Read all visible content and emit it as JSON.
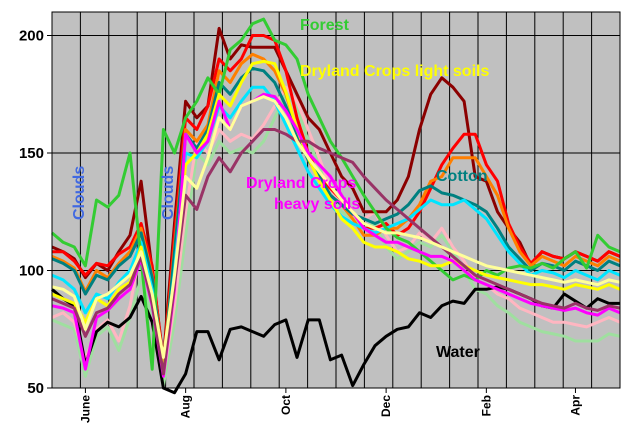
{
  "chart_data": {
    "type": "line",
    "title": "",
    "xlabel": "",
    "ylabel": "",
    "ylim": [
      50,
      210
    ],
    "yticks": [
      50,
      100,
      150,
      200
    ],
    "n_points": 52,
    "grid": true,
    "x_ticks": [
      {
        "label": "June",
        "index": 3
      },
      {
        "label": "Aug",
        "index": 12
      },
      {
        "label": "Oct",
        "index": 21
      },
      {
        "label": "Dec",
        "index": 30
      },
      {
        "label": "Feb",
        "index": 39
      },
      {
        "label": "Apr",
        "index": 47
      }
    ],
    "annotations": [
      {
        "text": "Forest",
        "color": "#33cc33"
      },
      {
        "text": "Dryland Crops light soils",
        "color": "#ffff00"
      },
      {
        "text": "Cotton",
        "color": "#008080"
      },
      {
        "text": "Dryland Crops",
        "color": "#ff00ff"
      },
      {
        "text": "heavy soils",
        "color": "#ff00ff"
      },
      {
        "text": "Water",
        "color": "#000000"
      },
      {
        "text": "Clouds",
        "color": "#4169e1"
      },
      {
        "text": "Clouds",
        "color": "#4169e1"
      }
    ],
    "series": [
      {
        "color": "#9fdf9f",
        "values": [
          79,
          77,
          75,
          55,
          72,
          76,
          66,
          80,
          97,
          80,
          51,
          78,
          115,
          150,
          145,
          155,
          150,
          152,
          150,
          155,
          165,
          175,
          170,
          155,
          145,
          130,
          125,
          122,
          118,
          120,
          110,
          105,
          108,
          112,
          110,
          115,
          108,
          100,
          92,
          90,
          85,
          82,
          78,
          76,
          74,
          73,
          72,
          70,
          70,
          70,
          73,
          72
        ]
      },
      {
        "color": "#ffb6c1",
        "values": [
          80,
          82,
          78,
          62,
          75,
          79,
          70,
          85,
          110,
          88,
          55,
          85,
          125,
          155,
          150,
          160,
          155,
          158,
          156,
          162,
          170,
          178,
          172,
          160,
          148,
          135,
          128,
          124,
          122,
          125,
          115,
          108,
          110,
          116,
          112,
          118,
          110,
          104,
          96,
          94,
          90,
          88,
          84,
          82,
          80,
          78,
          78,
          77,
          76,
          78,
          80,
          78
        ]
      },
      {
        "color": "#000000",
        "values": [
          92,
          88,
          85,
          60,
          74,
          78,
          76,
          80,
          89,
          78,
          50,
          48,
          56,
          74,
          74,
          62,
          75,
          76,
          74,
          72,
          77,
          79,
          63,
          79,
          79,
          62,
          64,
          51,
          60,
          68,
          72,
          75,
          76,
          82,
          80,
          85,
          87,
          86,
          92,
          92,
          93,
          92,
          90,
          88,
          85,
          84,
          90,
          87,
          84,
          88,
          86,
          86
        ]
      },
      {
        "color": "#8b0000",
        "values": [
          110,
          108,
          105,
          97,
          103,
          100,
          108,
          115,
          138,
          100,
          62,
          120,
          172,
          165,
          170,
          203,
          190,
          196,
          195,
          195,
          195,
          185,
          175,
          165,
          160,
          150,
          140,
          135,
          125,
          125,
          125,
          130,
          140,
          160,
          175,
          182,
          178,
          172,
          140,
          138,
          125,
          118,
          112,
          102,
          108,
          106,
          105,
          108,
          106,
          104,
          108,
          106
        ]
      },
      {
        "color": "#ff0000",
        "values": [
          108,
          108,
          104,
          98,
          103,
          102,
          107,
          110,
          120,
          102,
          60,
          115,
          165,
          160,
          170,
          190,
          185,
          190,
          200,
          200,
          198,
          185,
          165,
          150,
          140,
          135,
          130,
          125,
          118,
          118,
          120,
          115,
          118,
          125,
          135,
          145,
          152,
          158,
          158,
          145,
          138,
          120,
          110,
          103,
          108,
          106,
          105,
          108,
          106,
          104,
          108,
          106
        ]
      },
      {
        "color": "#ff7f00",
        "values": [
          106,
          104,
          101,
          91,
          100,
          97,
          103,
          108,
          118,
          98,
          59,
          110,
          160,
          155,
          162,
          185,
          180,
          188,
          192,
          190,
          185,
          175,
          160,
          148,
          140,
          132,
          128,
          122,
          115,
          115,
          118,
          118,
          122,
          128,
          138,
          140,
          148,
          148,
          148,
          140,
          132,
          118,
          108,
          102,
          106,
          104,
          102,
          106,
          104,
          102,
          106,
          104
        ]
      },
      {
        "color": "#008080",
        "values": [
          105,
          103,
          100,
          90,
          98,
          96,
          102,
          106,
          116,
          97,
          58,
          108,
          158,
          152,
          160,
          180,
          175,
          182,
          186,
          185,
          180,
          170,
          158,
          147,
          140,
          132,
          128,
          124,
          122,
          120,
          122,
          124,
          128,
          134,
          136,
          133,
          132,
          130,
          128,
          125,
          118,
          110,
          105,
          100,
          103,
          102,
          100,
          104,
          102,
          100,
          104,
          102
        ]
      },
      {
        "color": "#00e5ff",
        "values": [
          98,
          96,
          92,
          82,
          90,
          88,
          95,
          100,
          112,
          92,
          57,
          100,
          150,
          148,
          155,
          170,
          165,
          172,
          178,
          178,
          172,
          162,
          152,
          142,
          135,
          128,
          123,
          120,
          118,
          116,
          118,
          120,
          122,
          126,
          130,
          128,
          128,
          130,
          126,
          122,
          115,
          108,
          103,
          98,
          100,
          99,
          97,
          100,
          98,
          96,
          100,
          98
        ]
      },
      {
        "color": "#33cc33",
        "values": [
          116,
          112,
          110,
          102,
          130,
          127,
          132,
          150,
          105,
          58,
          160,
          150,
          165,
          172,
          182,
          175,
          194,
          198,
          205,
          207,
          198,
          196,
          190,
          175,
          165,
          155,
          148,
          140,
          132,
          125,
          118,
          114,
          112,
          108,
          104,
          100,
          96,
          98,
          96,
          100,
          98,
          101,
          102,
          101,
          103,
          101,
          105,
          108,
          101,
          115,
          110,
          108
        ]
      },
      {
        "color": "#ffff00",
        "values": [
          90,
          88,
          86,
          78,
          88,
          85,
          92,
          95,
          110,
          88,
          58,
          96,
          145,
          150,
          158,
          175,
          170,
          180,
          188,
          189,
          188,
          176,
          160,
          148,
          138,
          130,
          122,
          118,
          112,
          110,
          110,
          108,
          105,
          104,
          102,
          102,
          104,
          102,
          100,
          98,
          97,
          96,
          95,
          94,
          94,
          93,
          92,
          94,
          93,
          92,
          94,
          92
        ]
      },
      {
        "color": "#ff00ff",
        "values": [
          85,
          84,
          82,
          58,
          80,
          83,
          88,
          92,
          105,
          85,
          55,
          92,
          158,
          150,
          155,
          172,
          160,
          170,
          172,
          175,
          174,
          168,
          160,
          150,
          145,
          140,
          132,
          125,
          118,
          115,
          112,
          112,
          110,
          108,
          106,
          106,
          104,
          100,
          96,
          94,
          92,
          90,
          88,
          86,
          85,
          84,
          83,
          84,
          82,
          81,
          84,
          82
        ]
      },
      {
        "color": "#993366",
        "values": [
          88,
          86,
          84,
          72,
          82,
          84,
          90,
          94,
          106,
          86,
          56,
          94,
          132,
          126,
          140,
          148,
          142,
          150,
          155,
          160,
          160,
          158,
          155,
          155,
          152,
          150,
          148,
          146,
          140,
          135,
          130,
          126,
          122,
          118,
          114,
          110,
          106,
          102,
          98,
          96,
          94,
          92,
          90,
          88,
          86,
          85,
          84,
          86,
          84,
          83,
          85,
          84
        ]
      },
      {
        "color": "#ffff99",
        "values": [
          93,
          92,
          89,
          75,
          88,
          90,
          94,
          98,
          108,
          90,
          63,
          98,
          140,
          135,
          148,
          165,
          160,
          170,
          172,
          174,
          172,
          165,
          155,
          148,
          142,
          136,
          130,
          125,
          120,
          118,
          116,
          116,
          115,
          114,
          112,
          110,
          108,
          106,
          104,
          102,
          101,
          100,
          99,
          98,
          97,
          96,
          95,
          96,
          95,
          94,
          96,
          95
        ]
      }
    ]
  }
}
